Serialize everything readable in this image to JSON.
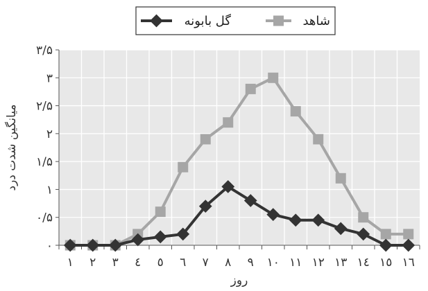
{
  "chart_data": {
    "type": "line",
    "categories": [
      "۱",
      "۲",
      "۳",
      "٤",
      "٥",
      "٦",
      "۷",
      "۸",
      "۹",
      "۱۰",
      "۱۱",
      "۱۲",
      "۱۳",
      "١٤",
      "١٥",
      "١٦"
    ],
    "xlabel": "روز",
    "ylabel": "میانگین شدت درد",
    "yticks": [
      "۰",
      "۰/۵",
      "۱",
      "۱/۵",
      "۲",
      "۲/۵",
      "۳",
      "۳/۵"
    ],
    "ylim": [
      0,
      3.5
    ],
    "grid": true,
    "legend_position": "top",
    "series": [
      {
        "name": "شاهد",
        "color": "#a6a6a6",
        "marker": "square",
        "values": [
          0,
          0,
          0,
          0.2,
          0.6,
          1.4,
          1.9,
          2.2,
          2.8,
          3.0,
          2.4,
          1.9,
          1.2,
          0.5,
          0.2,
          0.2
        ]
      },
      {
        "name": "گل بابونه",
        "color": "#333333",
        "marker": "diamond",
        "values": [
          0,
          0,
          0,
          0.1,
          0.15,
          0.2,
          0.7,
          1.05,
          0.8,
          0.55,
          0.45,
          0.45,
          0.3,
          0.2,
          0,
          0
        ]
      }
    ]
  }
}
